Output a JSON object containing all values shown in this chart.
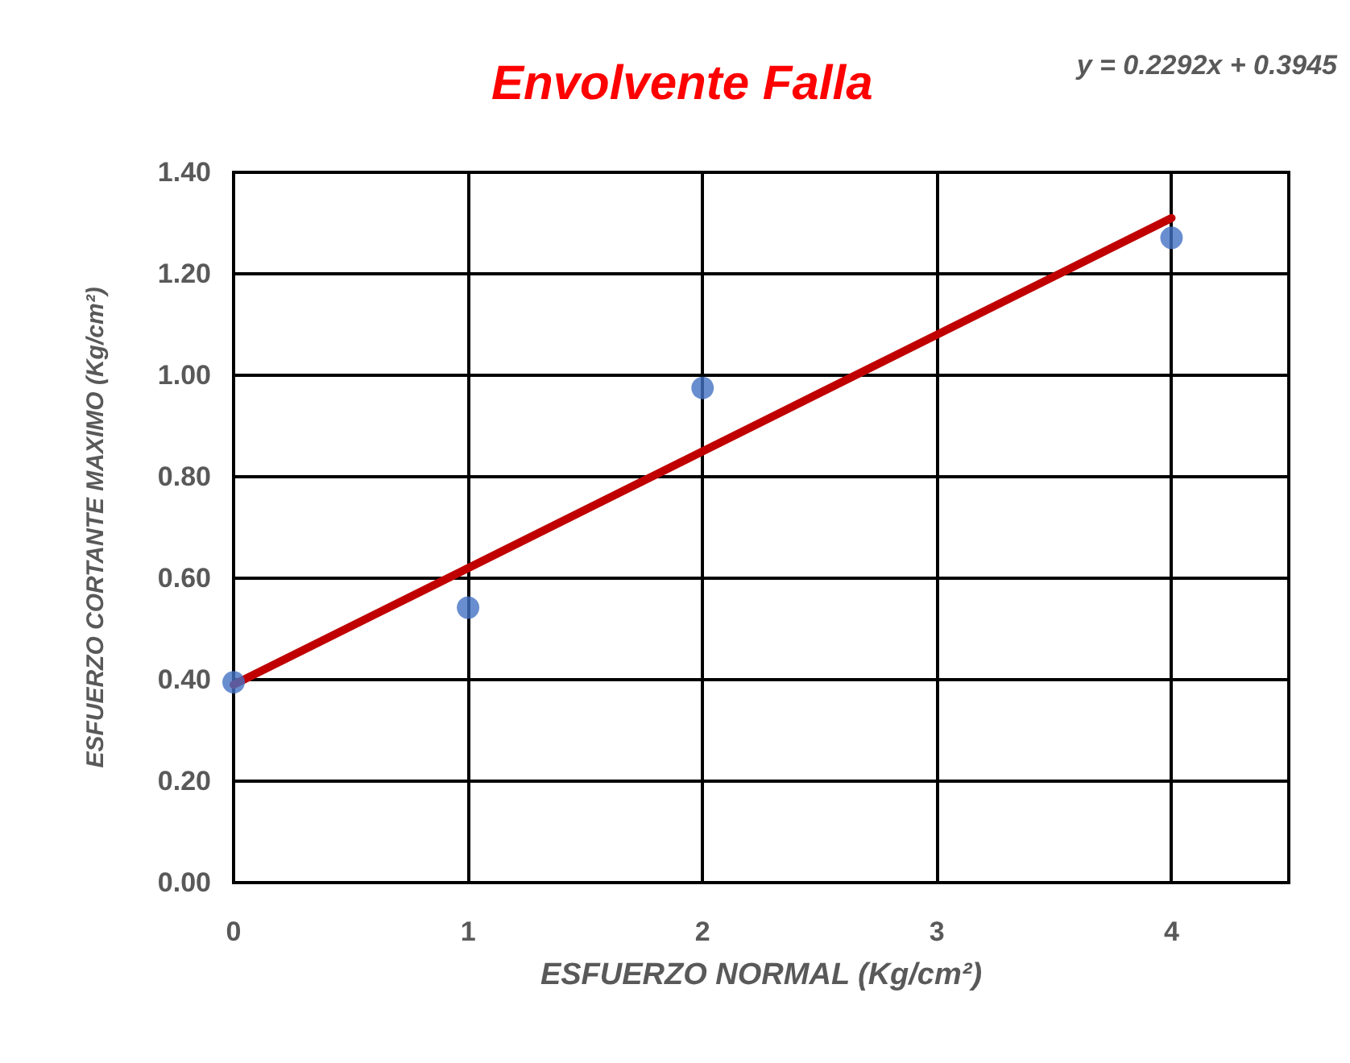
{
  "chart_data": {
    "type": "scatter",
    "title": "Envolvente Falla",
    "xlabel": "ESFUERZO NORMAL (Kg/cm²)",
    "ylabel": "ESFUERZO CORTANTE MAXIMO (Kg/cm²)",
    "annotations": [
      "y = 0.2292x + 0.3945"
    ],
    "series": [
      {
        "type": "scatter",
        "color": "#4472c4",
        "marker": "circle",
        "x": [
          0,
          1,
          2,
          4
        ],
        "values": [
          0.395,
          0.542,
          0.975,
          1.271
        ]
      },
      {
        "type": "line",
        "color": "#c00000",
        "marker": "none",
        "line_style": "solid",
        "x": [
          0,
          4
        ],
        "values": [
          0.39,
          1.31
        ]
      }
    ],
    "xlim": [
      0,
      4.5
    ],
    "xticks": [
      0,
      1,
      2,
      3,
      4
    ],
    "ylim": [
      0,
      1.4
    ],
    "yticks": [
      {
        "value": 0,
        "label": "0.00"
      },
      {
        "value": 0.2,
        "label": "0.20"
      },
      {
        "value": 0.4,
        "label": "0.40"
      },
      {
        "value": 0.6,
        "label": "0.60"
      },
      {
        "value": 0.8,
        "label": "0.80"
      },
      {
        "value": 1.0,
        "label": "1.00"
      },
      {
        "value": 1.2,
        "label": "1.20"
      },
      {
        "value": 1.4,
        "label": "1.40"
      }
    ],
    "grid": true
  }
}
